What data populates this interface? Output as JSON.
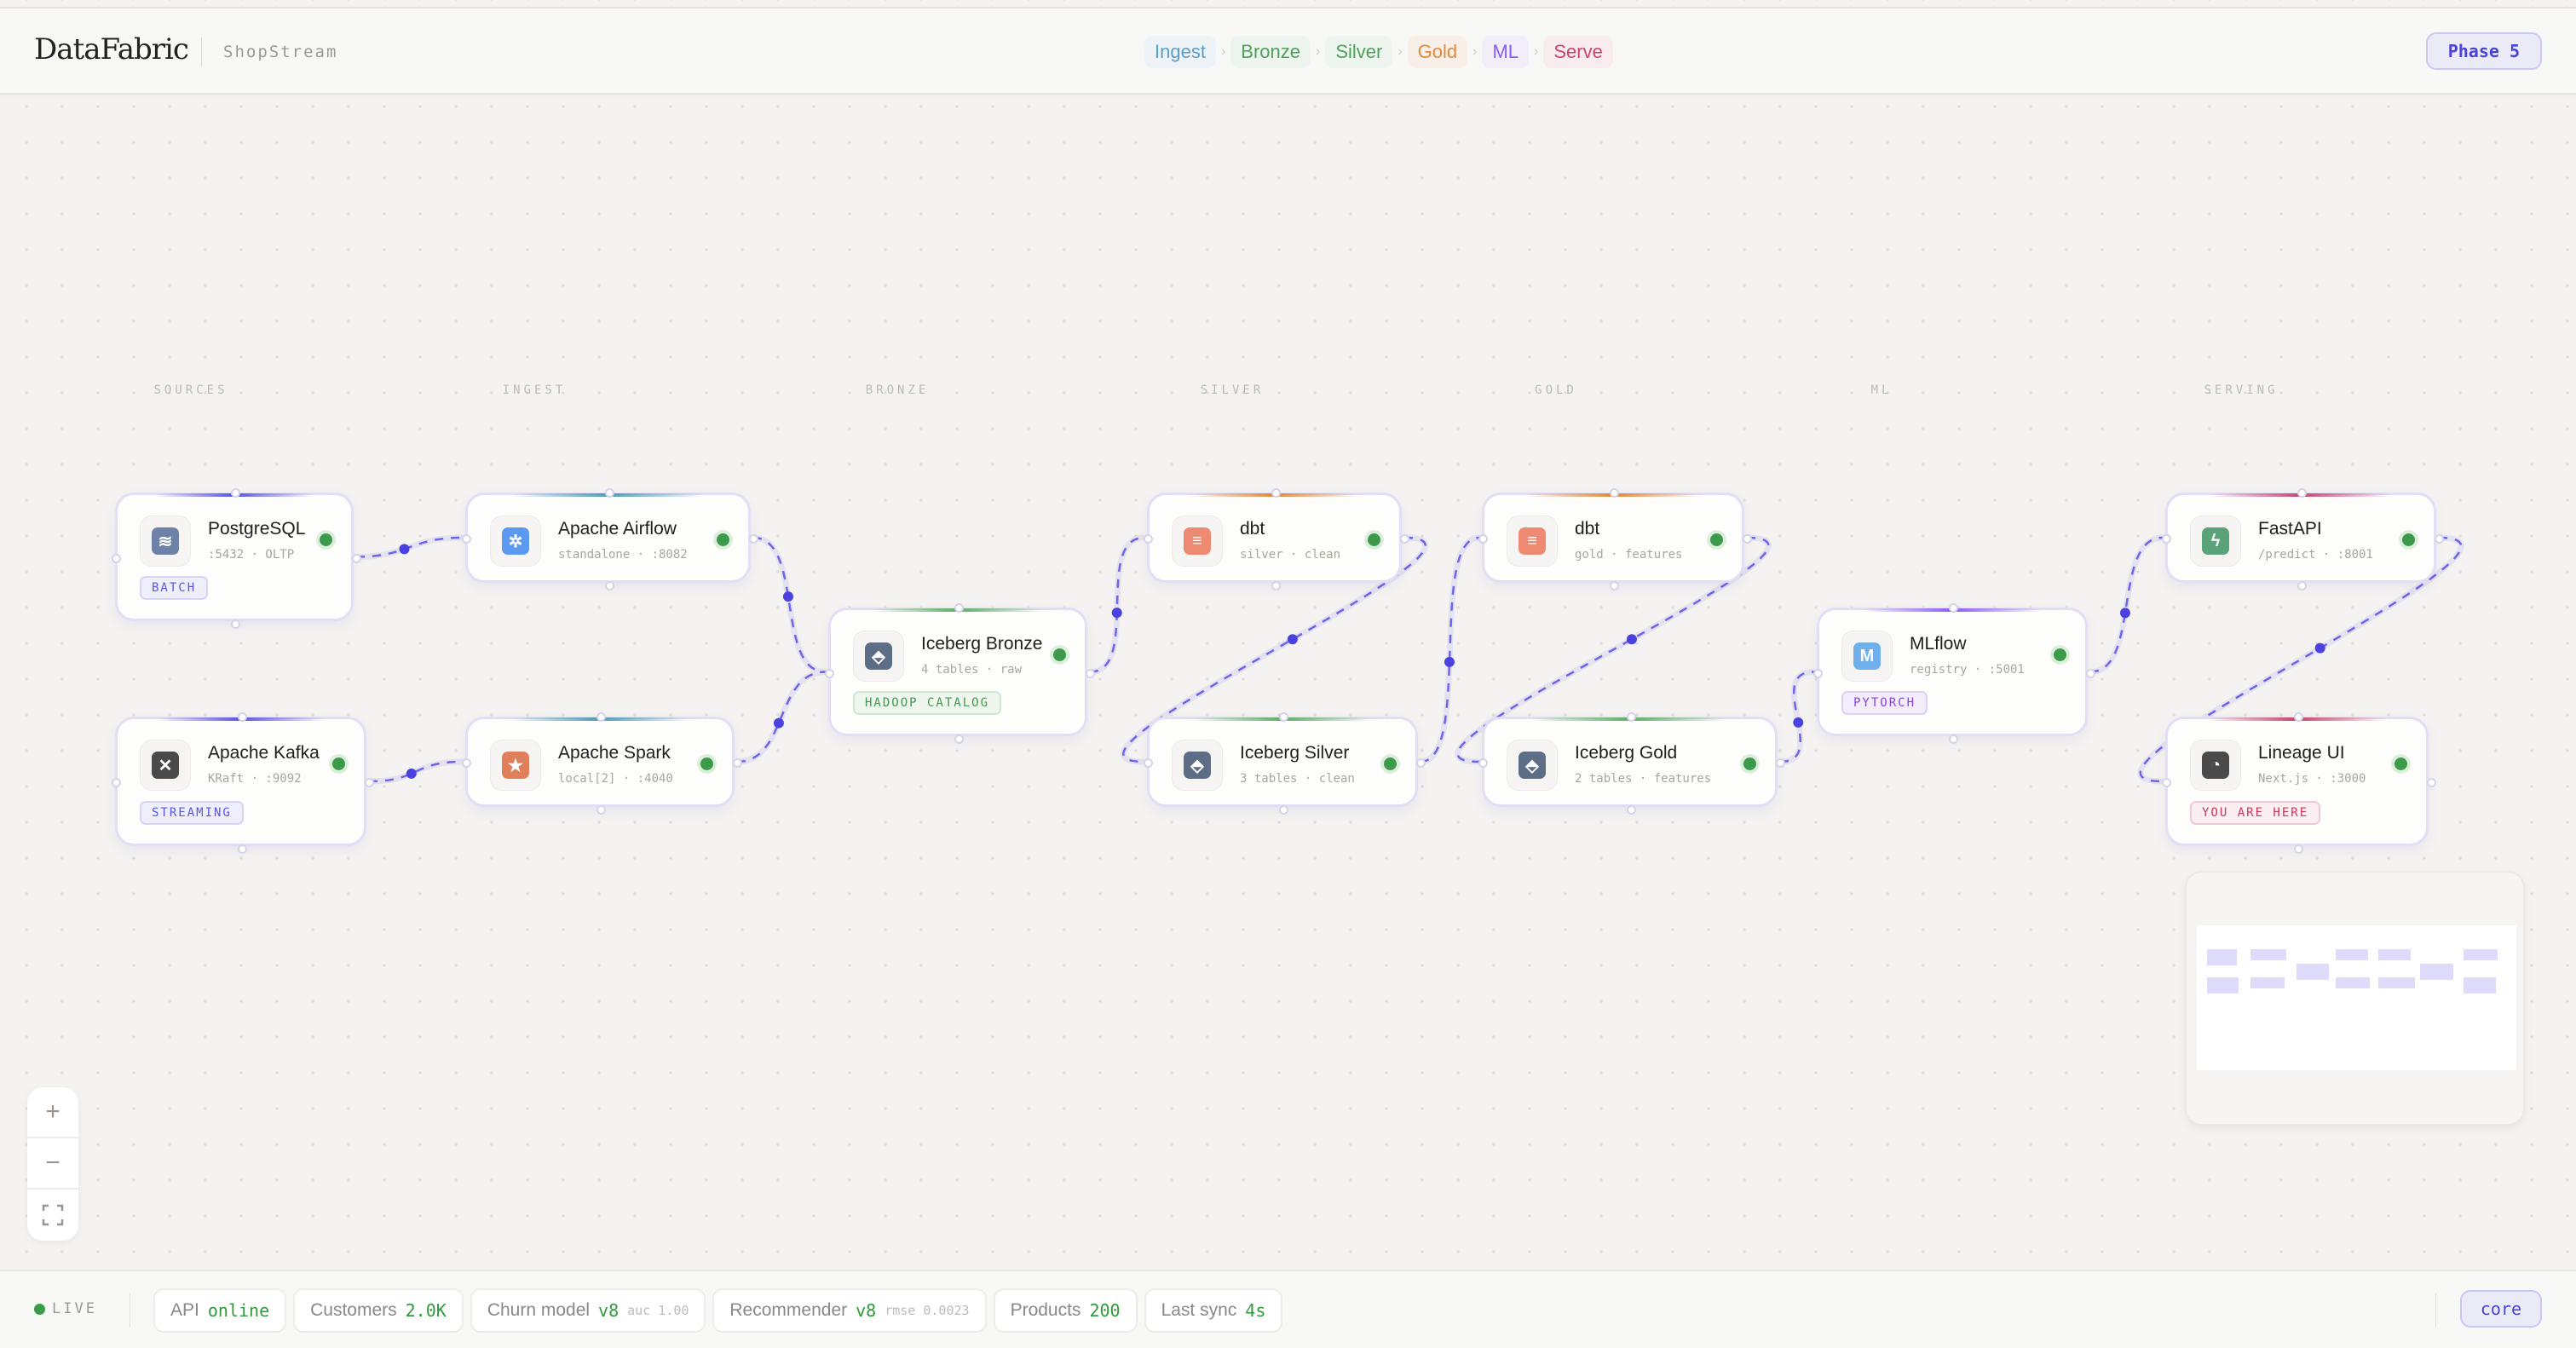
{
  "header": {
    "brand": "DataFabric",
    "project": "ShopStream",
    "stages": [
      {
        "label": "Ingest",
        "color": "#5a9ec9",
        "bg": "#edf3f7"
      },
      {
        "label": "Bronze",
        "color": "#4fa05a",
        "bg": "#edf5ee"
      },
      {
        "label": "Silver",
        "color": "#4fa05a",
        "bg": "#edf5ee"
      },
      {
        "label": "Gold",
        "color": "#e0893a",
        "bg": "#f8f0e8"
      },
      {
        "label": "ML",
        "color": "#8b5cf6",
        "bg": "#f1edf9"
      },
      {
        "label": "Serve",
        "color": "#c8456a",
        "bg": "#f8ecef"
      }
    ],
    "phase": "Phase 5"
  },
  "columns": [
    "SOURCES",
    "INGEST",
    "BRONZE",
    "SILVER",
    "GOLD",
    "ML",
    "SERVING"
  ],
  "nodes": [
    {
      "id": "postgres",
      "title": "PostgreSQL",
      "sub": ":5432 · OLTP",
      "tag": "BATCH",
      "tagStyle": "purple",
      "icon": "database-icon",
      "iconColor": "#6d82a6",
      "accent": "#5b55e0"
    },
    {
      "id": "kafka",
      "title": "Apache Kafka",
      "sub": "KRaft · :9092",
      "tag": "STREAMING",
      "tagStyle": "purple",
      "icon": "kafka-icon",
      "iconColor": "#4a4a4a",
      "accent": "#5b55e0"
    },
    {
      "id": "airflow",
      "title": "Apache Airflow",
      "sub": "standalone · :8082",
      "icon": "airflow-icon",
      "iconColor": "#5b9af0",
      "accent": "#4d9bb5"
    },
    {
      "id": "spark",
      "title": "Apache Spark",
      "sub": "local[2] · :4040",
      "icon": "spark-icon",
      "iconColor": "#e0805a",
      "accent": "#4d9bb5"
    },
    {
      "id": "bronze",
      "title": "Iceberg Bronze",
      "sub": "4 tables · raw",
      "tag": "HADOOP CATALOG",
      "tagStyle": "green",
      "icon": "iceberg-icon",
      "iconColor": "#5d6d85",
      "accent": "#5fae66"
    },
    {
      "id": "dbt_silver",
      "title": "dbt",
      "sub": "silver · clean",
      "icon": "dbt-icon",
      "iconColor": "#ef8a72",
      "accent": "#e0893a"
    },
    {
      "id": "silver",
      "title": "Iceberg Silver",
      "sub": "3 tables · clean",
      "icon": "iceberg-icon",
      "iconColor": "#5d6d85",
      "accent": "#5fae66"
    },
    {
      "id": "dbt_gold",
      "title": "dbt",
      "sub": "gold · features",
      "icon": "dbt-icon",
      "iconColor": "#ef8a72",
      "accent": "#e0893a"
    },
    {
      "id": "gold",
      "title": "Iceberg Gold",
      "sub": "2 tables · features",
      "icon": "iceberg-icon",
      "iconColor": "#5d6d85",
      "accent": "#5fae66"
    },
    {
      "id": "mlflow",
      "title": "MLflow",
      "sub": "registry · :5001",
      "tag": "PYTORCH",
      "tagStyle": "violet",
      "icon": "mlflow-icon",
      "iconColor": "#6fb0ea",
      "accent": "#8b5cf6"
    },
    {
      "id": "fastapi",
      "title": "FastAPI",
      "sub": "/predict · :8001",
      "icon": "lightning-icon",
      "iconColor": "#5aa27a",
      "accent": "#c8456a"
    },
    {
      "id": "lineage",
      "title": "Lineage UI",
      "sub": "Next.js · :3000",
      "tag": "YOU ARE HERE",
      "tagStyle": "red",
      "icon": "cursor-icon",
      "iconColor": "#4a4a4a",
      "accent": "#c8456a"
    }
  ],
  "edges": [
    [
      "postgres",
      "airflow"
    ],
    [
      "kafka",
      "spark"
    ],
    [
      "airflow",
      "bronze"
    ],
    [
      "spark",
      "bronze"
    ],
    [
      "bronze",
      "dbt_silver"
    ],
    [
      "dbt_silver",
      "silver"
    ],
    [
      "silver",
      "dbt_gold"
    ],
    [
      "dbt_gold",
      "gold"
    ],
    [
      "gold",
      "mlflow"
    ],
    [
      "mlflow",
      "fastapi"
    ],
    [
      "fastapi",
      "lineage"
    ]
  ],
  "footer": {
    "live": "LIVE",
    "stats": [
      {
        "label": "API",
        "value": "online"
      },
      {
        "label": "Customers",
        "value": "2.0K"
      },
      {
        "label": "Churn model",
        "value": "v8",
        "extra": "auc 1.00"
      },
      {
        "label": "Recommender",
        "value": "v8",
        "extra": "rmse 0.0023"
      },
      {
        "label": "Products",
        "value": "200"
      },
      {
        "label": "Last sync",
        "value": "4s"
      }
    ],
    "mode": "core"
  },
  "zoom_controls": {
    "zoom_in": "+",
    "zoom_out": "−"
  }
}
